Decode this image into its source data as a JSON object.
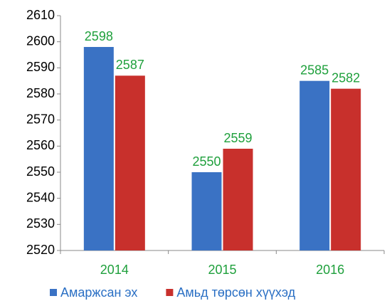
{
  "chart_data": {
    "type": "bar",
    "categories": [
      "2014",
      "2015",
      "2016"
    ],
    "series": [
      {
        "name": "Амаржсан эх",
        "color": "#3a72c4",
        "values": [
          2598,
          2550,
          2585
        ]
      },
      {
        "name": "Амьд төрсөн хүүхэд",
        "color": "#c8302c",
        "values": [
          2587,
          2559,
          2582
        ]
      }
    ],
    "ylim": [
      2520,
      2610
    ],
    "yticks": [
      2520,
      2530,
      2540,
      2550,
      2560,
      2570,
      2580,
      2590,
      2600,
      2610
    ],
    "label_color": "#1fa03c",
    "legend": "bottom"
  }
}
